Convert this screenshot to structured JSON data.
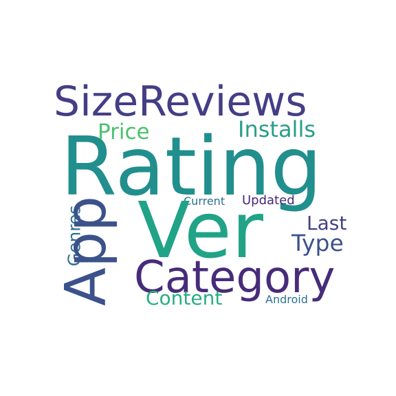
{
  "words": [
    {
      "text": "SizeReviews",
      "color": "#433e85"
    },
    {
      "text": "Price",
      "color": "#4ac16d"
    },
    {
      "text": "Installs",
      "color": "#2a9d8a"
    },
    {
      "text": "Rating",
      "color": "#218f8d"
    },
    {
      "text": "Current",
      "color": "#2e6f8e"
    },
    {
      "text": "Updated",
      "color": "#482677"
    },
    {
      "text": "Genres",
      "color": "#2c728e"
    },
    {
      "text": "App",
      "color": "#3b528b"
    },
    {
      "text": "Ver",
      "color": "#20a386"
    },
    {
      "text": "Last",
      "color": "#424086"
    },
    {
      "text": "Type",
      "color": "#3b518b"
    },
    {
      "text": "Category",
      "color": "#472c7a"
    },
    {
      "text": "Content",
      "color": "#28ae80"
    },
    {
      "text": "Android",
      "color": "#2c738e"
    }
  ]
}
